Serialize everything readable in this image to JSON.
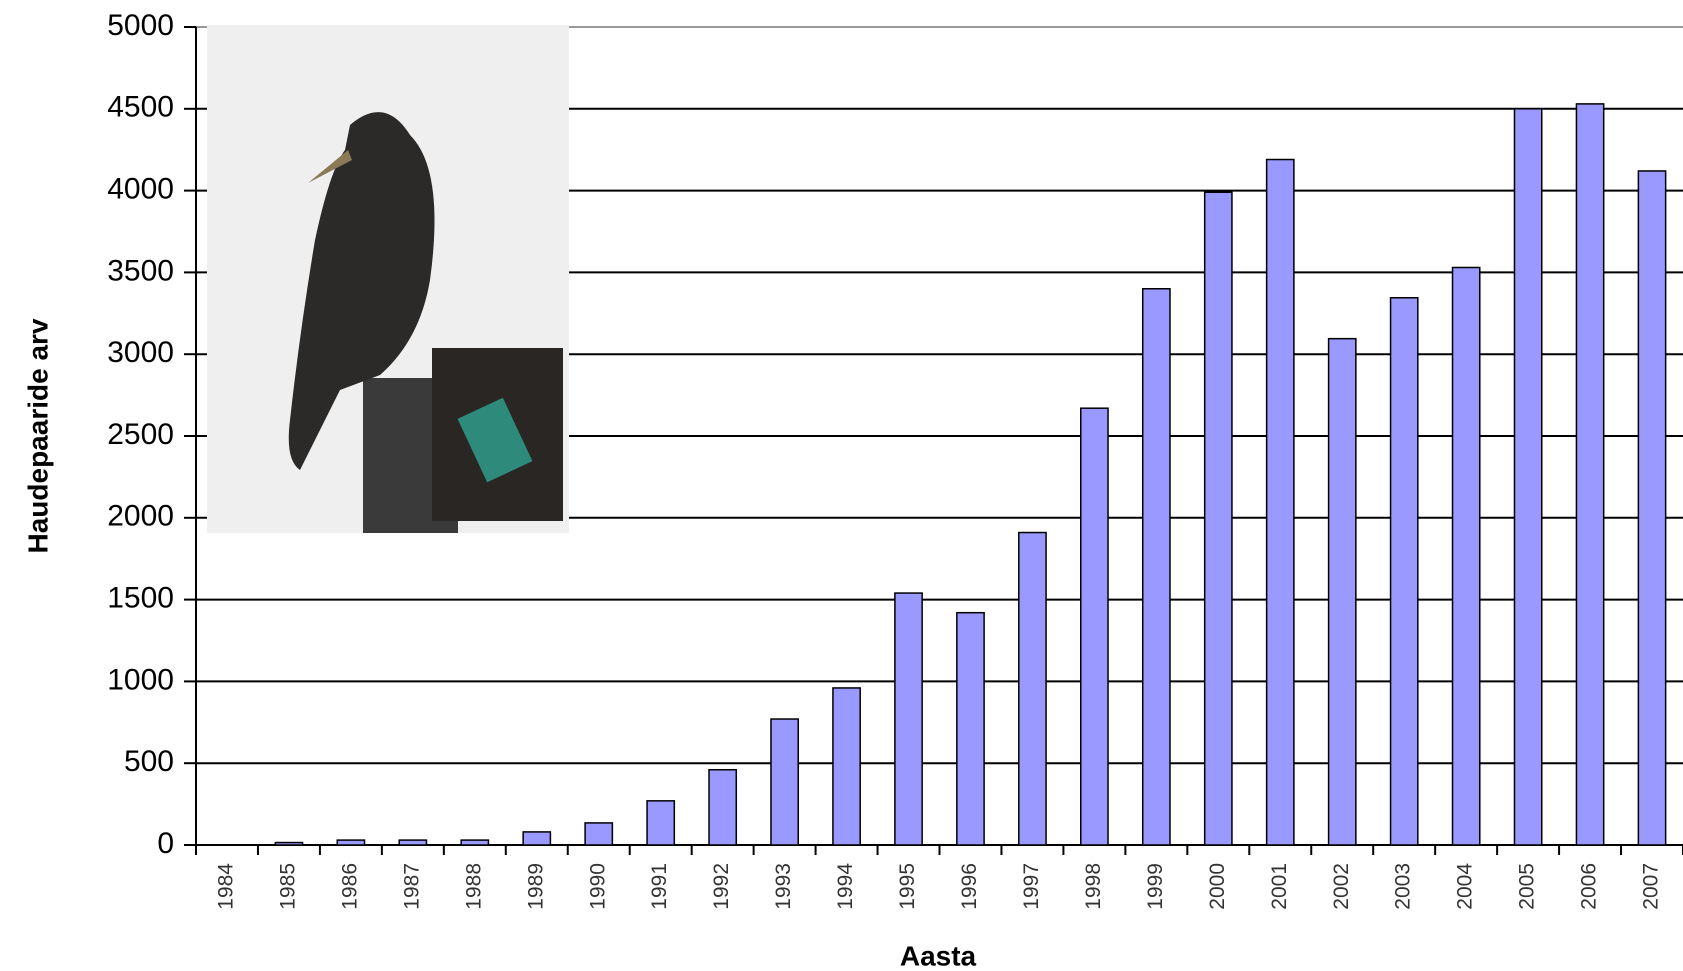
{
  "chart_data": {
    "type": "bar",
    "x_label": "Aasta",
    "y_label": "Haudepaaride arv",
    "categories": [
      "1984",
      "1985",
      "1986",
      "1987",
      "1988",
      "1989",
      "1990",
      "1991",
      "1992",
      "1993",
      "1994",
      "1995",
      "1996",
      "1997",
      "1998",
      "1999",
      "2000",
      "2001",
      "2002",
      "2003",
      "2004",
      "2005",
      "2006",
      "2007"
    ],
    "values": [
      0,
      15,
      30,
      30,
      30,
      80,
      135,
      270,
      460,
      770,
      960,
      1540,
      1420,
      1910,
      2670,
      3400,
      3990,
      4190,
      3095,
      3345,
      3530,
      4500,
      4530,
      4120
    ],
    "color": "#9999ff",
    "ylim": [
      0,
      5000
    ],
    "yticks": [
      0,
      500,
      1000,
      1500,
      2000,
      2500,
      3000,
      3500,
      4000,
      4500,
      5000
    ],
    "grid": true
  }
}
